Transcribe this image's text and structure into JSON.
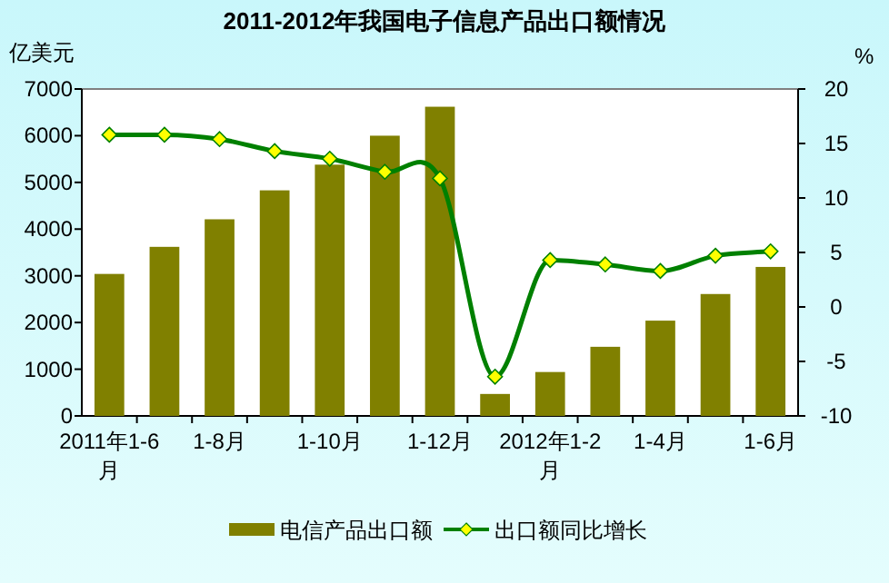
{
  "chart_data": {
    "type": "bar",
    "title": "2011-2012年我国电子信息产品出口额情况",
    "categories": [
      "2011年1-6月",
      null,
      "1-8月",
      null,
      "1-10月",
      null,
      "1-12月",
      null,
      "2012年1-2月",
      null,
      "1-4月",
      null,
      "1-6月"
    ],
    "series": [
      {
        "name": "电信产品出口额",
        "color": "#808000",
        "values": [
          3040,
          3620,
          4210,
          4830,
          5380,
          6000,
          6620,
          470,
          940,
          1480,
          2040,
          2610,
          3190
        ]
      },
      {
        "name": "出口额同比增长",
        "type": "line",
        "axis": "y2",
        "color": "#008000",
        "marker": "diamond",
        "values": [
          15.8,
          15.8,
          15.4,
          14.3,
          13.6,
          12.4,
          11.8,
          -6.4,
          4.3,
          3.9,
          3.3,
          4.7,
          5.1
        ]
      }
    ],
    "ylabel": "亿美元",
    "y2label": "%",
    "ylim": [
      0,
      7000
    ],
    "yticks": [
      0,
      1000,
      2000,
      3000,
      4000,
      5000,
      6000,
      7000
    ],
    "y2lim": [
      -10,
      20
    ],
    "y2ticks": [
      -10,
      -5,
      0,
      5,
      10,
      15,
      20
    ],
    "grid": false,
    "legend": "bottom"
  }
}
